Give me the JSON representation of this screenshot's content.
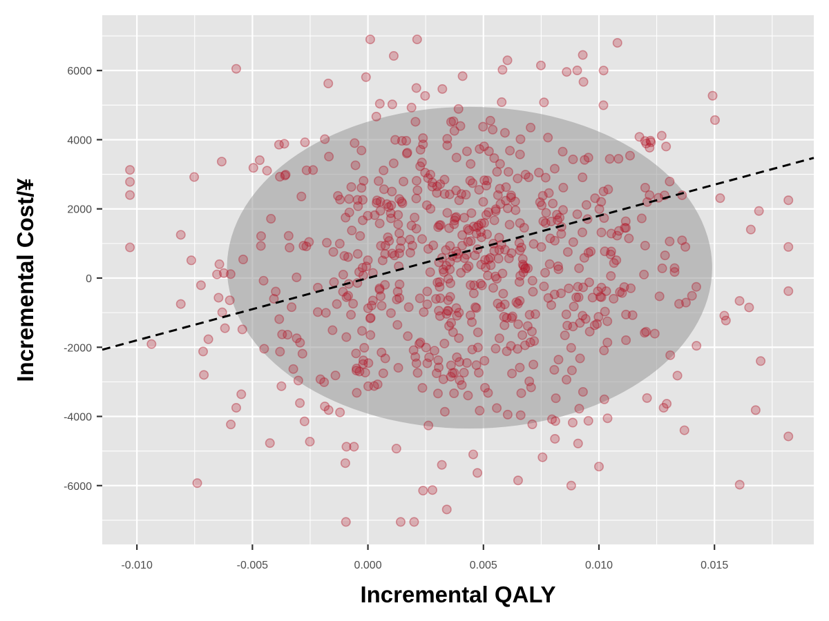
{
  "chart_data": {
    "type": "scatter",
    "title": "",
    "xlabel": "Incremental QALY",
    "ylabel": "Incremental Cost/¥",
    "xlim": [
      -0.0115,
      0.0193
    ],
    "ylim": [
      -7700,
      7600
    ],
    "x_ticks": [
      -0.01,
      -0.005,
      0.0,
      0.005,
      0.01,
      0.015
    ],
    "x_tick_labels": [
      "-0.010",
      "-0.005",
      "0.000",
      "0.005",
      "0.010",
      "0.015"
    ],
    "y_ticks": [
      -6000,
      -4000,
      -2000,
      0,
      2000,
      4000,
      6000
    ],
    "y_tick_labels": [
      "-6000",
      "-4000",
      "-2000",
      "0",
      "2000",
      "4000",
      "6000"
    ],
    "grid": true,
    "legend": "none",
    "colors": {
      "panel_background": "#e5e5e5",
      "grid": "#ffffff",
      "points": "#b2182b",
      "ellipse": "#999999",
      "wtp_line": "#000000"
    },
    "confidence_ellipse": {
      "center": [
        0.0044,
        300
      ],
      "semi_axis_x": 0.0105,
      "semi_axis_y": 4650
    },
    "wtp_line": {
      "style": "dashed",
      "slope": 180000,
      "intercept": 0
    },
    "points": {
      "count": 700,
      "x_mean": 0.0044,
      "x_sd": 0.0052,
      "y_mean": 300,
      "y_sd": 2450,
      "x_range": [
        -0.0103,
        0.0182
      ],
      "y_range": [
        -7050,
        6900
      ],
      "notable": [
        [
          0.0001,
          6900
        ],
        [
          0.0108,
          6800
        ],
        [
          -0.0057,
          6050
        ],
        [
          0.0093,
          6450
        ],
        [
          0.0102,
          6000
        ],
        [
          0.002,
          -7050
        ],
        [
          0.0088,
          -6000
        ],
        [
          0.0065,
          -5850
        ],
        [
          0.01,
          -5450
        ],
        [
          0.0032,
          -5400
        ],
        [
          -0.0103,
          2400
        ],
        [
          0.0182,
          900
        ],
        [
          0.017,
          -2400
        ],
        [
          0.0165,
          -850
        ],
        [
          -0.0081,
          1250
        ],
        [
          -0.0081,
          -750
        ],
        [
          -0.0071,
          -2800
        ],
        [
          -0.0057,
          -3750
        ],
        [
          0.0137,
          -4400
        ],
        [
          0.0128,
          -3750
        ]
      ]
    }
  }
}
